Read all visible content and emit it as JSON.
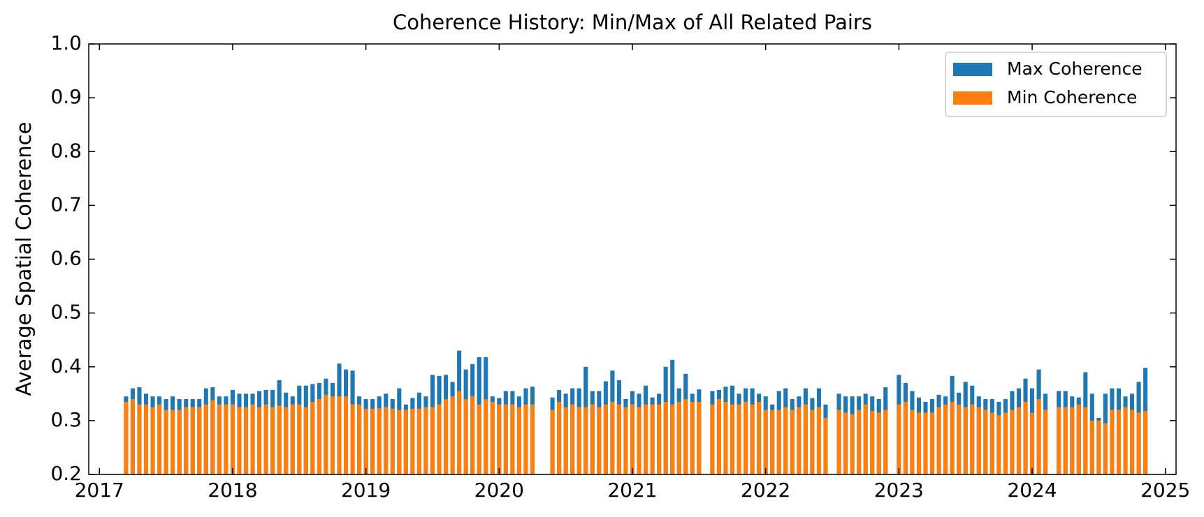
{
  "chart_data": {
    "type": "bar",
    "title": "Coherence History: Min/Max of All Related Pairs",
    "y_label": "Average Spatial Coherence",
    "x": [
      2017.2,
      2017.25,
      2017.3,
      2017.35,
      2017.4,
      2017.45,
      2017.5,
      2017.55,
      2017.6,
      2017.65,
      2017.7,
      2017.75,
      2017.8,
      2017.85,
      2017.9,
      2017.95,
      2018,
      2018.05,
      2018.1,
      2018.15,
      2018.2,
      2018.25,
      2018.3,
      2018.35,
      2018.4,
      2018.45,
      2018.5,
      2018.55,
      2018.6,
      2018.65,
      2018.7,
      2018.75,
      2018.8,
      2018.85,
      2018.9,
      2018.95,
      2019,
      2019.05,
      2019.1,
      2019.15,
      2019.2,
      2019.25,
      2019.3,
      2019.35,
      2019.4,
      2019.45,
      2019.5,
      2019.55,
      2019.6,
      2019.65,
      2019.7,
      2019.75,
      2019.8,
      2019.85,
      2019.9,
      2019.95,
      2020,
      2020.05,
      2020.1,
      2020.15,
      2020.2,
      2020.25,
      2020.4,
      2020.45,
      2020.5,
      2020.55,
      2020.6,
      2020.65,
      2020.7,
      2020.75,
      2020.8,
      2020.85,
      2020.9,
      2020.95,
      2021,
      2021.05,
      2021.1,
      2021.15,
      2021.2,
      2021.25,
      2021.3,
      2021.35,
      2021.4,
      2021.45,
      2021.5,
      2021.6,
      2021.65,
      2021.7,
      2021.75,
      2021.8,
      2021.85,
      2021.9,
      2021.95,
      2022,
      2022.05,
      2022.1,
      2022.15,
      2022.2,
      2022.25,
      2022.3,
      2022.35,
      2022.4,
      2022.45,
      2022.55,
      2022.6,
      2022.65,
      2022.7,
      2022.75,
      2022.8,
      2022.85,
      2022.9,
      2023,
      2023.05,
      2023.1,
      2023.15,
      2023.2,
      2023.25,
      2023.3,
      2023.35,
      2023.4,
      2023.45,
      2023.5,
      2023.55,
      2023.6,
      2023.65,
      2023.7,
      2023.75,
      2023.8,
      2023.85,
      2023.9,
      2023.95,
      2024,
      2024.05,
      2024.1,
      2024.2,
      2024.25,
      2024.3,
      2024.35,
      2024.4,
      2024.45,
      2024.5,
      2024.55,
      2024.6,
      2024.65,
      2024.7,
      2024.75,
      2024.8,
      2024.85
    ],
    "series": [
      {
        "name": "Max Coherence",
        "color": "#1f77b4",
        "values": [
          0.345,
          0.36,
          0.362,
          0.35,
          0.345,
          0.345,
          0.34,
          0.345,
          0.34,
          0.34,
          0.34,
          0.34,
          0.36,
          0.362,
          0.345,
          0.345,
          0.357,
          0.35,
          0.35,
          0.35,
          0.355,
          0.357,
          0.357,
          0.375,
          0.352,
          0.345,
          0.365,
          0.365,
          0.368,
          0.37,
          0.378,
          0.37,
          0.406,
          0.395,
          0.393,
          0.345,
          0.34,
          0.34,
          0.345,
          0.35,
          0.34,
          0.36,
          0.33,
          0.342,
          0.352,
          0.345,
          0.385,
          0.383,
          0.385,
          0.372,
          0.43,
          0.395,
          0.405,
          0.418,
          0.418,
          0.345,
          0.342,
          0.355,
          0.355,
          0.345,
          0.36,
          0.363,
          0.343,
          0.357,
          0.35,
          0.36,
          0.36,
          0.4,
          0.355,
          0.355,
          0.373,
          0.393,
          0.375,
          0.34,
          0.355,
          0.35,
          0.365,
          0.343,
          0.35,
          0.4,
          0.413,
          0.36,
          0.387,
          0.35,
          0.358,
          0.355,
          0.357,
          0.363,
          0.365,
          0.35,
          0.36,
          0.36,
          0.35,
          0.345,
          0.33,
          0.355,
          0.36,
          0.34,
          0.345,
          0.36,
          0.342,
          0.36,
          0.33,
          0.35,
          0.345,
          0.345,
          0.345,
          0.35,
          0.345,
          0.34,
          0.362,
          0.385,
          0.37,
          0.355,
          0.343,
          0.335,
          0.34,
          0.348,
          0.345,
          0.383,
          0.352,
          0.372,
          0.365,
          0.345,
          0.34,
          0.34,
          0.335,
          0.34,
          0.355,
          0.36,
          0.378,
          0.36,
          0.395,
          0.35,
          0.355,
          0.355,
          0.345,
          0.343,
          0.39,
          0.35,
          0.305,
          0.35,
          0.36,
          0.36,
          0.345,
          0.35,
          0.372,
          0.398
        ]
      },
      {
        "name": "Min Coherence",
        "color": "#ff7f0e",
        "values": [
          0.335,
          0.34,
          0.33,
          0.33,
          0.325,
          0.33,
          0.32,
          0.32,
          0.32,
          0.325,
          0.325,
          0.325,
          0.33,
          0.338,
          0.33,
          0.33,
          0.33,
          0.325,
          0.325,
          0.33,
          0.325,
          0.33,
          0.325,
          0.328,
          0.325,
          0.33,
          0.33,
          0.325,
          0.335,
          0.34,
          0.348,
          0.345,
          0.345,
          0.345,
          0.33,
          0.33,
          0.322,
          0.322,
          0.323,
          0.325,
          0.322,
          0.32,
          0.32,
          0.322,
          0.322,
          0.325,
          0.325,
          0.33,
          0.34,
          0.345,
          0.355,
          0.34,
          0.345,
          0.33,
          0.34,
          0.335,
          0.33,
          0.33,
          0.33,
          0.325,
          0.33,
          0.33,
          0.32,
          0.335,
          0.325,
          0.33,
          0.325,
          0.325,
          0.33,
          0.325,
          0.33,
          0.335,
          0.33,
          0.325,
          0.33,
          0.325,
          0.33,
          0.33,
          0.33,
          0.335,
          0.33,
          0.335,
          0.34,
          0.335,
          0.335,
          0.33,
          0.34,
          0.335,
          0.33,
          0.33,
          0.335,
          0.33,
          0.335,
          0.32,
          0.32,
          0.32,
          0.325,
          0.32,
          0.325,
          0.33,
          0.32,
          0.325,
          0.305,
          0.32,
          0.315,
          0.312,
          0.32,
          0.33,
          0.318,
          0.315,
          0.32,
          0.33,
          0.335,
          0.32,
          0.315,
          0.315,
          0.315,
          0.325,
          0.33,
          0.335,
          0.33,
          0.325,
          0.33,
          0.325,
          0.32,
          0.315,
          0.31,
          0.315,
          0.32,
          0.325,
          0.335,
          0.315,
          0.34,
          0.32,
          0.325,
          0.325,
          0.325,
          0.33,
          0.325,
          0.3,
          0.3,
          0.295,
          0.32,
          0.32,
          0.325,
          0.32,
          0.315,
          0.318
        ]
      }
    ],
    "xlim": [
      2016.92,
      2025.08
    ],
    "xticks": [
      2017,
      2018,
      2019,
      2020,
      2021,
      2022,
      2023,
      2024,
      2025
    ],
    "ylim": [
      0.2,
      1
    ],
    "yticks": [
      0.2,
      0.3,
      0.4,
      0.5,
      0.6,
      0.7,
      0.8,
      0.9,
      {
        "value": 1,
        "label": "1.0"
      }
    ],
    "legend": "upper right",
    "grid": false
  }
}
